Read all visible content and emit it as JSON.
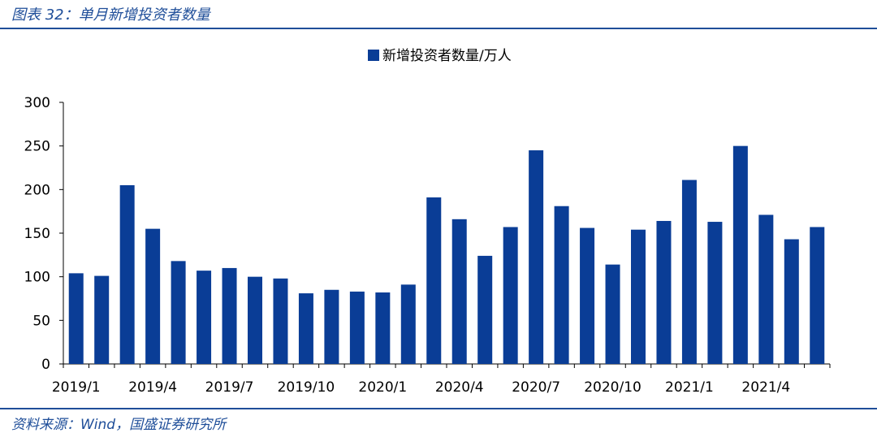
{
  "header": {
    "title": "图表 32：单月新增投资者数量"
  },
  "footer": {
    "source": "资料来源：Wind，国盛证券研究所"
  },
  "colors": {
    "accent": "#1f4e99",
    "bar": "#0a3d96"
  },
  "chart_data": {
    "type": "bar",
    "title": "",
    "xlabel": "",
    "ylabel": "",
    "ylim": [
      0,
      300
    ],
    "yticks": [
      0,
      50,
      100,
      150,
      200,
      250,
      300
    ],
    "grid": false,
    "legend_position": "top-center",
    "categories": [
      "2019/1",
      "2019/2",
      "2019/3",
      "2019/4",
      "2019/5",
      "2019/6",
      "2019/7",
      "2019/8",
      "2019/9",
      "2019/10",
      "2019/11",
      "2019/12",
      "2020/1",
      "2020/2",
      "2020/3",
      "2020/4",
      "2020/5",
      "2020/6",
      "2020/7",
      "2020/8",
      "2020/9",
      "2020/10",
      "2020/11",
      "2020/12",
      "2021/1",
      "2021/2",
      "2021/3",
      "2021/4",
      "2021/5",
      "2021/6"
    ],
    "tick_labels": [
      "2019/1",
      "2019/4",
      "2019/7",
      "2019/10",
      "2020/1",
      "2020/4",
      "2020/7",
      "2020/10",
      "2021/1",
      "2021/4"
    ],
    "series": [
      {
        "name": "新增投资者数量/万人",
        "values": [
          104,
          101,
          205,
          155,
          118,
          107,
          110,
          100,
          98,
          81,
          85,
          83,
          82,
          91,
          191,
          166,
          124,
          157,
          245,
          181,
          156,
          114,
          154,
          164,
          211,
          163,
          250,
          171,
          143,
          157
        ]
      }
    ]
  }
}
